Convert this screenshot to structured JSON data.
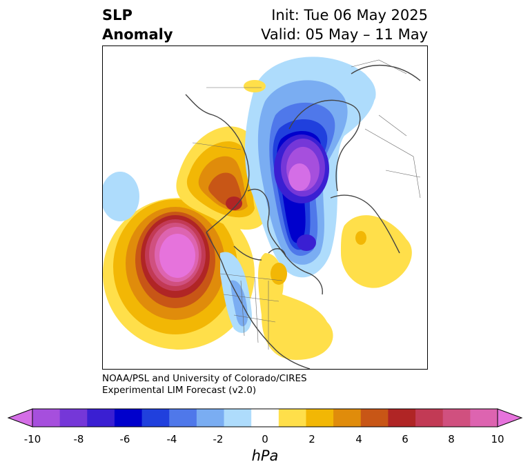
{
  "title": {
    "left_line1": "SLP",
    "left_line2": "Anomaly",
    "right_line1": "Init: Tue 06 May 2025",
    "right_line2": "Valid: 05 May – 11 May"
  },
  "credit": {
    "line1": "NOAA/PSL and University of Colorado/CIRES",
    "line2": "Experimental LIM Forecast (v2.0)"
  },
  "colorbar": {
    "units": "hPa",
    "ticks": [
      "-10",
      "-8",
      "-6",
      "-4",
      "-2",
      "0",
      "2",
      "4",
      "6",
      "8",
      "10"
    ],
    "colors": [
      "#d46ee6",
      "#a64fdd",
      "#7537d8",
      "#3a1fd2",
      "#0000cc",
      "#2040dd",
      "#4f78ea",
      "#7aadf2",
      "#aedcfc",
      "#ffffff",
      "#ffdf4a",
      "#f2b705",
      "#e08c0b",
      "#c85616",
      "#b02525",
      "#c23a55",
      "#d0507f",
      "#dd64b0",
      "#e673dc"
    ]
  }
}
